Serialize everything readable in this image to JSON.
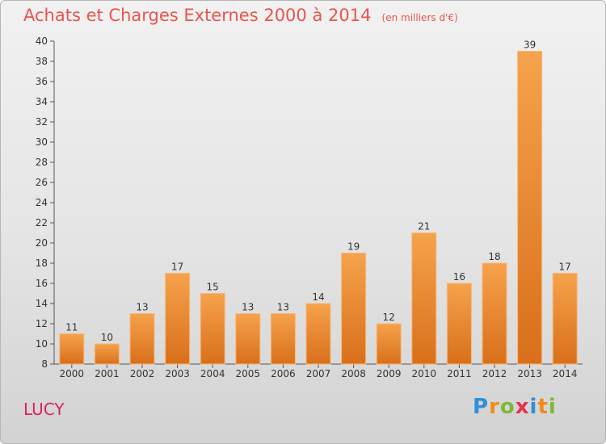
{
  "chart_data": {
    "type": "bar",
    "title": "Achats et Charges Externes 2000 à 2014",
    "subtitle": "(en milliers d'€)",
    "xlabel": "",
    "ylabel": "",
    "categories": [
      "2000",
      "2001",
      "2002",
      "2003",
      "2004",
      "2005",
      "2006",
      "2007",
      "2008",
      "2009",
      "2010",
      "2011",
      "2012",
      "2013",
      "2014"
    ],
    "values": [
      11,
      10,
      13,
      17,
      15,
      13,
      13,
      14,
      19,
      12,
      21,
      16,
      18,
      39,
      17
    ],
    "ylim": [
      8,
      40
    ],
    "yticks": [
      8,
      10,
      12,
      14,
      16,
      18,
      20,
      22,
      24,
      26,
      28,
      30,
      32,
      34,
      36,
      38,
      40
    ],
    "grid": false,
    "legend": "none",
    "bar_color_top": "#f6a24c",
    "bar_color_bottom": "#d96f1a"
  },
  "commune": "LUCY",
  "logo": {
    "text": "Proxiti"
  }
}
